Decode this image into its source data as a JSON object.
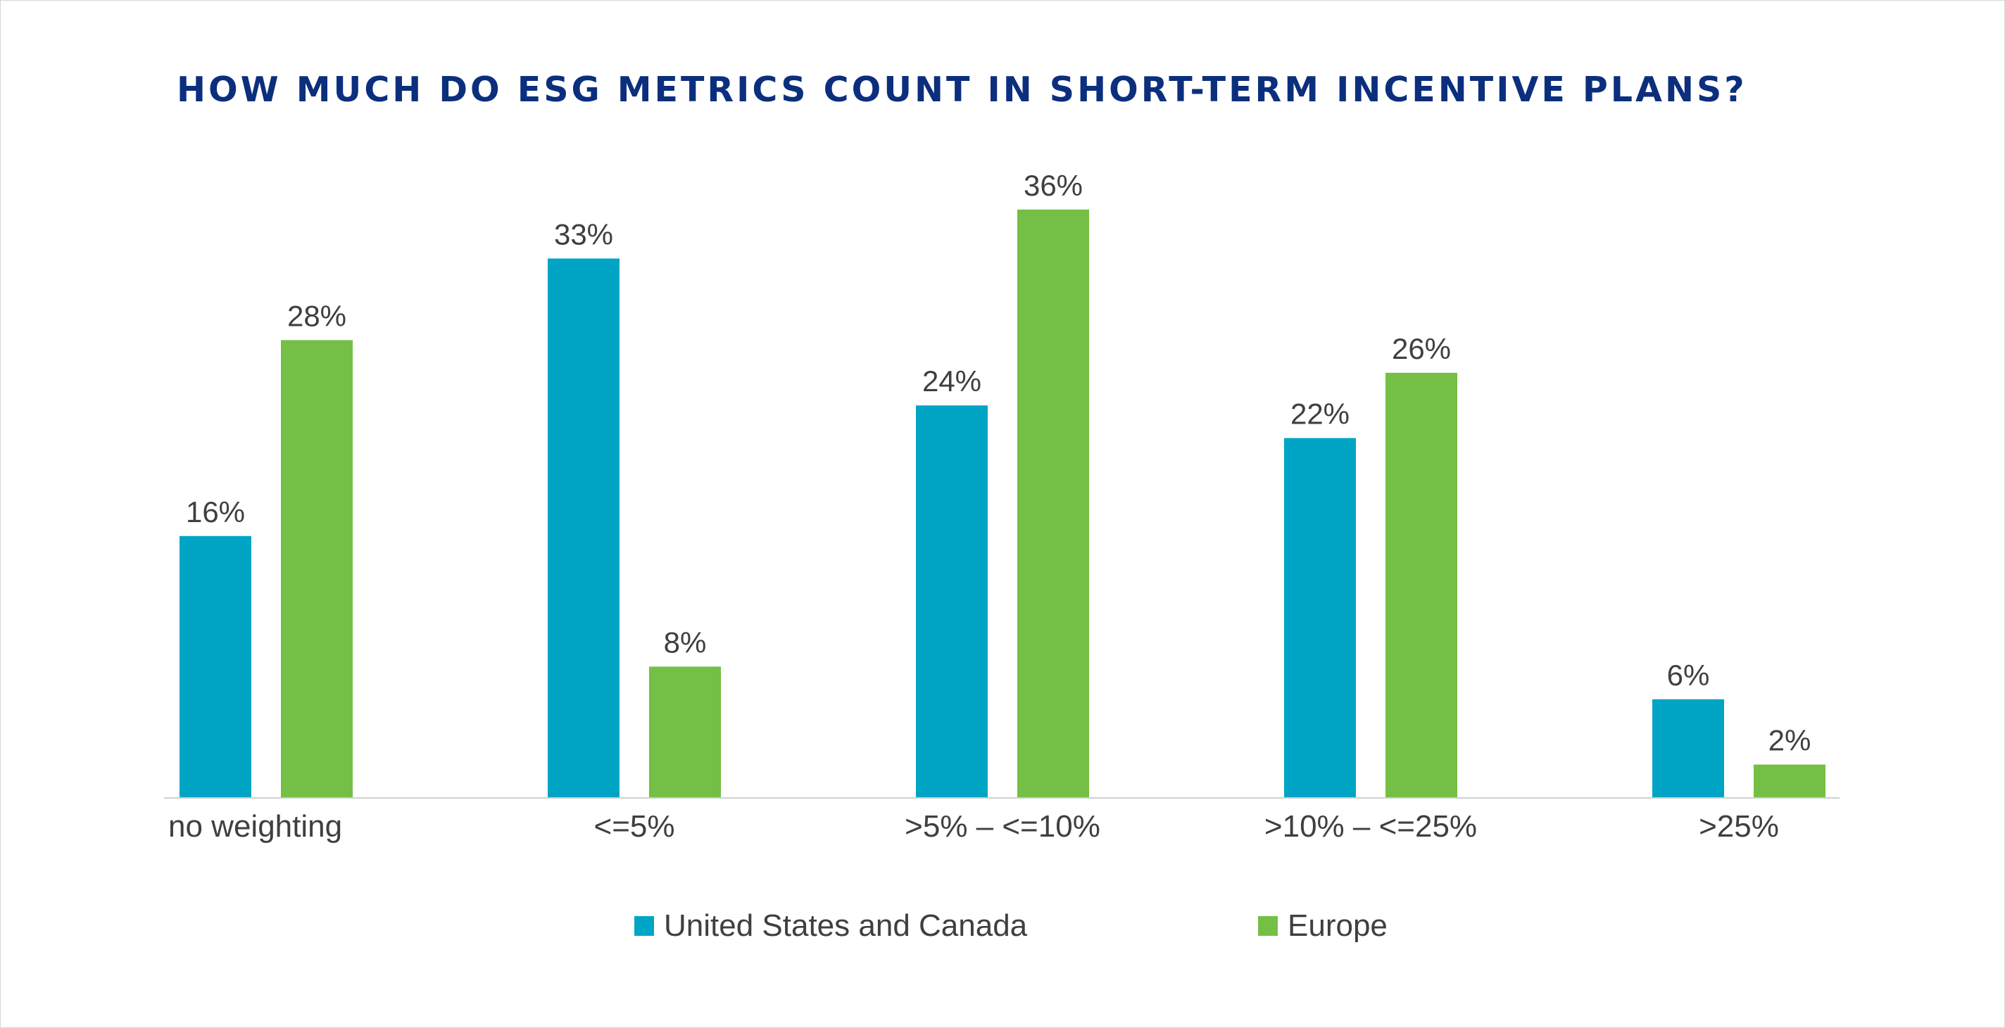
{
  "chart_data": {
    "type": "bar",
    "title": "HOW MUCH DO ESG METRICS COUNT IN SHORT-TERM INCENTIVE PLANS?",
    "xlabel": "",
    "ylabel": "",
    "categories": [
      "no weighting",
      "<=5%",
      ">5% – <=10%",
      ">10% – <=25%",
      ">25%"
    ],
    "series": [
      {
        "name": "United States and Canada",
        "color": "#00a5c6",
        "values": [
          16,
          33,
          24,
          22,
          6
        ],
        "labels": [
          "16%",
          "33%",
          "24%",
          "22%",
          "6%"
        ]
      },
      {
        "name": "Europe",
        "color": "#74bf45",
        "values": [
          28,
          8,
          36,
          26,
          2
        ],
        "labels": [
          "28%",
          "8%",
          "36%",
          "26%",
          "2%"
        ]
      }
    ],
    "ylim": [
      0,
      36
    ],
    "grid": false,
    "legend_position": "bottom"
  }
}
